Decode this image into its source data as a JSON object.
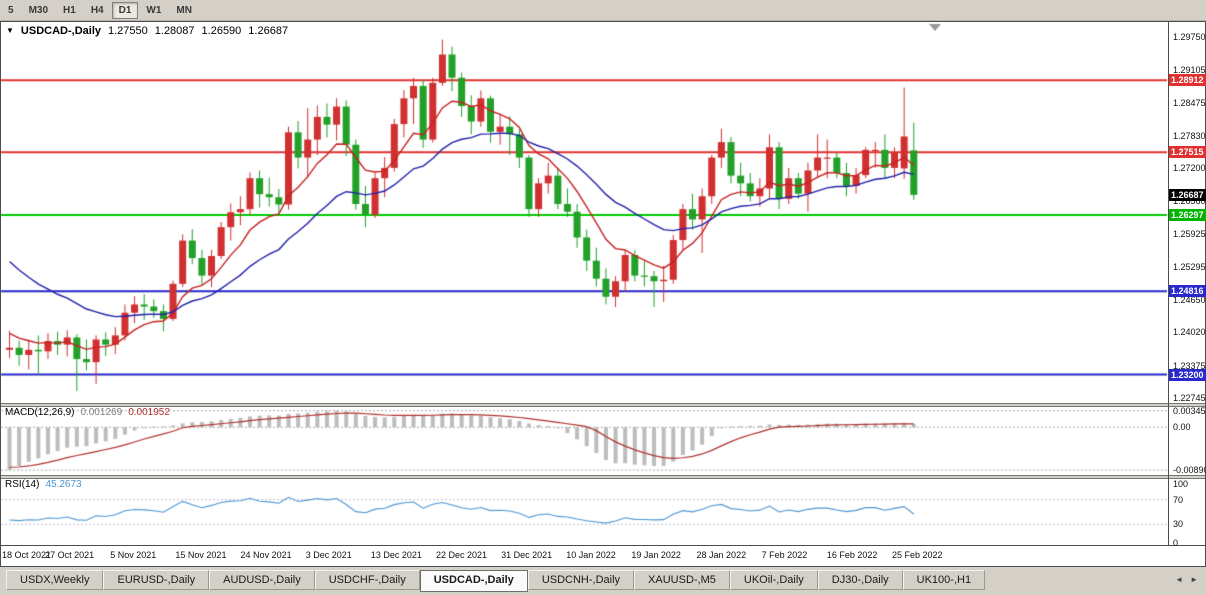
{
  "toolbar": {
    "timeframes": [
      {
        "label": "5",
        "selected": false
      },
      {
        "label": "M30",
        "selected": false
      },
      {
        "label": "H1",
        "selected": false
      },
      {
        "label": "H4",
        "selected": false
      },
      {
        "label": "D1",
        "selected": true
      },
      {
        "label": "W1",
        "selected": false
      },
      {
        "label": "MN",
        "selected": false
      }
    ]
  },
  "main_chart": {
    "expander_icon": "▼",
    "symbol_title": "USDCAD-,Daily",
    "open": "1.27550",
    "high": "1.28087",
    "low": "1.26590",
    "close": "1.26687"
  },
  "price_badges": [
    {
      "value": "1.28912",
      "price": 1.28912,
      "color": "#e03030"
    },
    {
      "value": "1.27515",
      "price": 1.27515,
      "color": "#e03030"
    },
    {
      "value": "1.26687",
      "price": 1.26687,
      "color": "#000000"
    },
    {
      "value": "1.26297",
      "price": 1.26297,
      "color": "#00b400"
    },
    {
      "value": "1.24816",
      "price": 1.24816,
      "color": "#2828cc"
    },
    {
      "value": "1.23200",
      "price": 1.232,
      "color": "#2828cc"
    }
  ],
  "macd_panel": {
    "label": "MACD(12,26,9)",
    "macd_value": "0.001269",
    "signal_value": "0.001952",
    "axis_labels": [
      "0.00345",
      "0.00",
      "-0.00890"
    ],
    "axis_values": [
      0.00345,
      0,
      -0.0089
    ]
  },
  "rsi_panel": {
    "label": "RSI(14)",
    "value": "45.2673",
    "axis_labels": [
      "100",
      "70",
      "30",
      "0"
    ],
    "axis_values": [
      100,
      70,
      30,
      0
    ],
    "levels": [
      70,
      30
    ]
  },
  "tabs": [
    {
      "label": "USDX,Weekly",
      "selected": false
    },
    {
      "label": "EURUSD-,Daily",
      "selected": false
    },
    {
      "label": "AUDUSD-,Daily",
      "selected": false
    },
    {
      "label": "USDCHF-,Daily",
      "selected": false
    },
    {
      "label": "USDCAD-,Daily",
      "selected": true
    },
    {
      "label": "USDCNH-,Daily",
      "selected": false
    },
    {
      "label": "XAUUSD-,M5",
      "selected": false
    },
    {
      "label": "UKOil-,Daily",
      "selected": false
    },
    {
      "label": "DJ30-,Daily",
      "selected": false
    },
    {
      "label": "UK100-,H1",
      "selected": false
    }
  ],
  "tab_scroll": {
    "left": "◄",
    "right": "►"
  },
  "chart_data": {
    "type": "candlestick",
    "symbol": "USDCAD",
    "period": "Daily",
    "title": "USDCAD-,Daily",
    "price_range": [
      1.22745,
      1.2975
    ],
    "y_tick_labels": [
      "1.29750",
      "1.29105",
      "1.28475",
      "1.27830",
      "1.27200",
      "1.26560",
      "1.25925",
      "1.25295",
      "1.24650",
      "1.24020",
      "1.23375",
      "1.22745"
    ],
    "x_tick_labels": [
      "18 Oct 2021",
      "27 Oct 2021",
      "5 Nov 2021",
      "15 Nov 2021",
      "24 Nov 2021",
      "3 Dec 2021",
      "13 Dec 2021",
      "22 Dec 2021",
      "31 Dec 2021",
      "10 Jan 2022",
      "19 Jan 2022",
      "28 Jan 2022",
      "7 Feb 2022",
      "16 Feb 2022",
      "25 Feb 2022"
    ],
    "up_color": "#d03030",
    "down_color": "#22a028",
    "ma_fast_color": "#c82020",
    "ma_slow_color": "#2020aa",
    "hlines": [
      {
        "price": 1.28912,
        "color": "#e03030"
      },
      {
        "price": 1.27515,
        "color": "#e03030"
      },
      {
        "price": 1.26297,
        "color": "#00cc00"
      },
      {
        "price": 1.24816,
        "color": "#2727cc"
      },
      {
        "price": 1.232,
        "color": "#2727cc"
      }
    ],
    "indicators": [
      {
        "type": "MACD",
        "params": [
          12,
          26,
          9
        ],
        "current": [
          0.001269,
          0.001952
        ],
        "range": [
          -0.0089,
          0.00345
        ],
        "histogram_color": "#bdbdbd",
        "signal_color": "#b03030"
      },
      {
        "type": "RSI",
        "params": [
          14
        ],
        "current": 45.2673,
        "range": [
          0,
          100
        ],
        "levels": [
          70,
          30
        ],
        "line_color": "#4e96d2"
      }
    ],
    "candles": [
      [
        1.2368,
        1.2405,
        1.2352,
        1.2372
      ],
      [
        1.2372,
        1.2386,
        1.2337,
        1.2358
      ],
      [
        1.2358,
        1.2388,
        1.233,
        1.2368
      ],
      [
        1.2368,
        1.2396,
        1.232,
        1.2365
      ],
      [
        1.2365,
        1.24,
        1.235,
        1.2385
      ],
      [
        1.2385,
        1.2403,
        1.2358,
        1.2378
      ],
      [
        1.2378,
        1.2406,
        1.2355,
        1.2392
      ],
      [
        1.2392,
        1.2398,
        1.2288,
        1.235
      ],
      [
        1.235,
        1.2388,
        1.2328,
        1.2344
      ],
      [
        1.2344,
        1.2396,
        1.2302,
        1.2388
      ],
      [
        1.2388,
        1.2402,
        1.2356,
        1.2378
      ],
      [
        1.2378,
        1.2412,
        1.236,
        1.2396
      ],
      [
        1.2396,
        1.2456,
        1.2386,
        1.244
      ],
      [
        1.244,
        1.2472,
        1.242,
        1.2456
      ],
      [
        1.2456,
        1.2476,
        1.2426,
        1.2452
      ],
      [
        1.2452,
        1.2466,
        1.243,
        1.2443
      ],
      [
        1.2443,
        1.2456,
        1.2404,
        1.2428
      ],
      [
        1.2428,
        1.2502,
        1.2424,
        1.2496
      ],
      [
        1.2496,
        1.2592,
        1.249,
        1.258
      ],
      [
        1.258,
        1.2602,
        1.2534,
        1.2546
      ],
      [
        1.2546,
        1.2562,
        1.2494,
        1.2512
      ],
      [
        1.2512,
        1.2562,
        1.249,
        1.255
      ],
      [
        1.255,
        1.2616,
        1.2544,
        1.2606
      ],
      [
        1.2606,
        1.2652,
        1.258,
        1.2635
      ],
      [
        1.2635,
        1.2666,
        1.261,
        1.2641
      ],
      [
        1.2641,
        1.2712,
        1.263,
        1.2701
      ],
      [
        1.2701,
        1.2716,
        1.2644,
        1.267
      ],
      [
        1.267,
        1.2702,
        1.2646,
        1.2664
      ],
      [
        1.2664,
        1.268,
        1.2634,
        1.265
      ],
      [
        1.265,
        1.2801,
        1.264,
        1.279
      ],
      [
        1.279,
        1.2812,
        1.272,
        1.2741
      ],
      [
        1.2741,
        1.2837,
        1.2702,
        1.2776
      ],
      [
        1.2776,
        1.2842,
        1.2746,
        1.282
      ],
      [
        1.282,
        1.2846,
        1.278,
        1.2805
      ],
      [
        1.2805,
        1.2856,
        1.2774,
        1.284
      ],
      [
        1.284,
        1.2852,
        1.2744,
        1.2766
      ],
      [
        1.2766,
        1.2776,
        1.264,
        1.2651
      ],
      [
        1.2651,
        1.2686,
        1.2606,
        1.263
      ],
      [
        1.263,
        1.2712,
        1.2624,
        1.2701
      ],
      [
        1.2701,
        1.2742,
        1.2664,
        1.2721
      ],
      [
        1.2721,
        1.2816,
        1.2714,
        1.2806
      ],
      [
        1.2806,
        1.2872,
        1.278,
        1.2856
      ],
      [
        1.2856,
        1.2896,
        1.2806,
        1.288
      ],
      [
        1.288,
        1.2892,
        1.276,
        1.2776
      ],
      [
        1.2776,
        1.2896,
        1.277,
        1.2886
      ],
      [
        1.2886,
        1.297,
        1.288,
        1.2941
      ],
      [
        1.2941,
        1.2956,
        1.287,
        1.2896
      ],
      [
        1.2896,
        1.2906,
        1.282,
        1.2841
      ],
      [
        1.2841,
        1.2862,
        1.2786,
        1.2811
      ],
      [
        1.2811,
        1.2871,
        1.2801,
        1.2856
      ],
      [
        1.2856,
        1.2861,
        1.277,
        1.2791
      ],
      [
        1.2791,
        1.2826,
        1.2766,
        1.2801
      ],
      [
        1.2801,
        1.2821,
        1.2746,
        1.2786
      ],
      [
        1.2786,
        1.2796,
        1.2721,
        1.2741
      ],
      [
        1.2741,
        1.2746,
        1.2626,
        1.2641
      ],
      [
        1.2641,
        1.2701,
        1.2626,
        1.2691
      ],
      [
        1.2691,
        1.2731,
        1.2671,
        1.2706
      ],
      [
        1.2706,
        1.2721,
        1.2641,
        1.2651
      ],
      [
        1.2651,
        1.2681,
        1.2626,
        1.2636
      ],
      [
        1.2636,
        1.2651,
        1.2566,
        1.2586
      ],
      [
        1.2586,
        1.2601,
        1.2521,
        1.2541
      ],
      [
        1.2541,
        1.2566,
        1.2491,
        1.2506
      ],
      [
        1.2506,
        1.2526,
        1.2456,
        1.2471
      ],
      [
        1.2471,
        1.2511,
        1.2451,
        1.2501
      ],
      [
        1.2501,
        1.2561,
        1.2481,
        1.2552
      ],
      [
        1.2552,
        1.2561,
        1.2501,
        1.2512
      ],
      [
        1.2512,
        1.2541,
        1.2491,
        1.2511
      ],
      [
        1.2511,
        1.2521,
        1.2451,
        1.2501
      ],
      [
        1.2501,
        1.2531,
        1.2461,
        1.2504
      ],
      [
        1.2504,
        1.2591,
        1.2496,
        1.2581
      ],
      [
        1.2581,
        1.2651,
        1.2561,
        1.2641
      ],
      [
        1.2641,
        1.2671,
        1.2601,
        1.2621
      ],
      [
        1.2621,
        1.2681,
        1.2556,
        1.2666
      ],
      [
        1.2666,
        1.2746,
        1.2651,
        1.2741
      ],
      [
        1.2741,
        1.2797,
        1.2721,
        1.2771
      ],
      [
        1.2771,
        1.2781,
        1.2691,
        1.2706
      ],
      [
        1.2706,
        1.2731,
        1.2666,
        1.2691
      ],
      [
        1.2691,
        1.2711,
        1.2656,
        1.2666
      ],
      [
        1.2666,
        1.2701,
        1.2646,
        1.2681
      ],
      [
        1.2681,
        1.2786,
        1.2661,
        1.2761
      ],
      [
        1.2761,
        1.2771,
        1.2641,
        1.2661
      ],
      [
        1.2661,
        1.2721,
        1.2651,
        1.2701
      ],
      [
        1.2701,
        1.2711,
        1.2661,
        1.2671
      ],
      [
        1.2671,
        1.2731,
        1.2636,
        1.2716
      ],
      [
        1.2716,
        1.2786,
        1.2701,
        1.2741
      ],
      [
        1.2741,
        1.2776,
        1.2701,
        1.2741
      ],
      [
        1.2741,
        1.2751,
        1.2701,
        1.2711
      ],
      [
        1.2711,
        1.2731,
        1.2666,
        1.2686
      ],
      [
        1.2686,
        1.2721,
        1.2671,
        1.2707
      ],
      [
        1.2707,
        1.2761,
        1.2701,
        1.2756
      ],
      [
        1.2756,
        1.2771,
        1.2721,
        1.2756
      ],
      [
        1.2756,
        1.2786,
        1.2701,
        1.2721
      ],
      [
        1.2721,
        1.2761,
        1.2701,
        1.2751
      ],
      [
        1.272,
        1.2877,
        1.27,
        1.2782
      ],
      [
        1.2755,
        1.28087,
        1.2659,
        1.26687
      ]
    ]
  }
}
